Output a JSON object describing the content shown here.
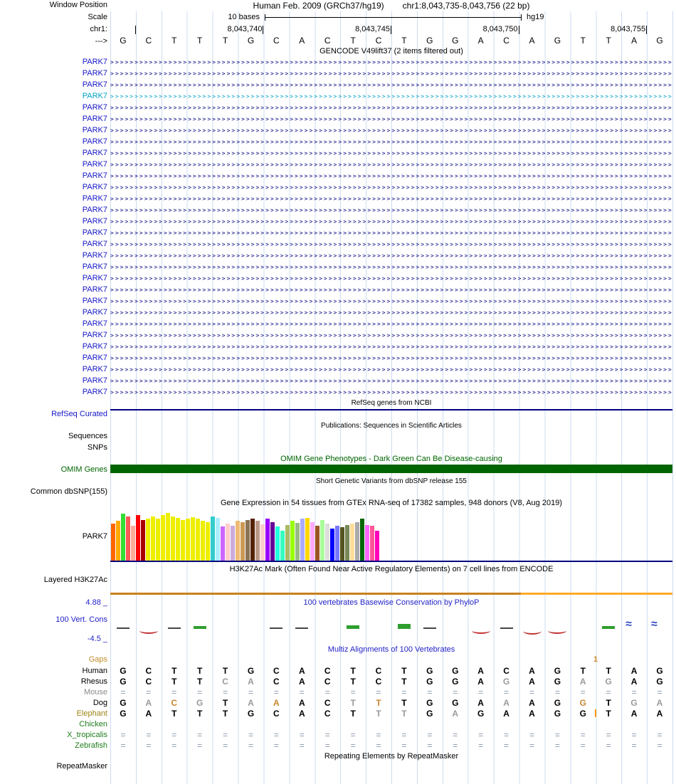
{
  "meta": {
    "title_assembly": "Human Feb. 2009 (GRCh37/hg19)",
    "title_position": "chr1:8,043,735-8,043,756 (22 bp)"
  },
  "gutter": {
    "window_position": "Window Position",
    "scale": "Scale",
    "chrom": "chr1:",
    "direction": "--->"
  },
  "ruler": {
    "scale_text": "10 bases",
    "assembly": "hg19",
    "sequence": "GCTTTGCACTCTGGACAGTTAG",
    "ticks": [
      {
        "label": "",
        "pos": 0
      },
      {
        "label": "8,043,740",
        "pos": 5
      },
      {
        "label": "8,043,745",
        "pos": 10
      },
      {
        "label": "8,043,750",
        "pos": 15
      },
      {
        "label": "8,043,755",
        "pos": 20
      }
    ]
  },
  "colors": {
    "transcript_label": "#1515c8",
    "transcript_highlight": "#00a2c8",
    "transcript_line": "#000080",
    "refseq_bar": "#000080",
    "omim_green": "#006400",
    "gtex_baseline": "#000080",
    "gridline": "#ccdcf0",
    "header_blue": "#2323c8",
    "gaps_orange": "#cc8822",
    "insert_bar": "#ff9800"
  },
  "gencode": {
    "header": "GENCODE V49lift37 (2 items filtered out)",
    "highlight_index": 3,
    "transcripts": [
      "PARK7",
      "PARK7",
      "PARK7",
      "PARK7",
      "PARK7",
      "PARK7",
      "PARK7",
      "PARK7",
      "PARK7",
      "PARK7",
      "PARK7",
      "PARK7",
      "PARK7",
      "PARK7",
      "PARK7",
      "PARK7",
      "PARK7",
      "PARK7",
      "PARK7",
      "PARK7",
      "PARK7",
      "PARK7",
      "PARK7",
      "PARK7",
      "PARK7",
      "PARK7",
      "PARK7",
      "PARK7",
      "PARK7",
      "PARK7"
    ]
  },
  "refseq": {
    "header": "RefSeq genes from NCBI",
    "label": "RefSeq Curated"
  },
  "publications": {
    "header": "Publications: Sequences in Scientific Articles",
    "label": "Sequences"
  },
  "snps": {
    "label": "SNPs"
  },
  "omim": {
    "header": "OMIM Gene Phenotypes - Dark Green Can Be Disease-causing",
    "label": "OMIM Genes"
  },
  "dbsnp": {
    "header": "Short Genetic Variants from dbSNP release 155",
    "label": "Common dbSNP(155)"
  },
  "gtex": {
    "header": "Gene Expression in 54 tissues from GTEx RNA-seq of 17382 samples, 948 donors (V8, Aug 2019)",
    "label": "PARK7",
    "bars": [
      [
        "#FF6600",
        0.74
      ],
      [
        "#FFAA00",
        0.79
      ],
      [
        "#33DD33",
        0.93
      ],
      [
        "#FF5555",
        0.88
      ],
      [
        "#FFAA99",
        0.7
      ],
      [
        "#FF0000",
        0.9
      ],
      [
        "#AA0000",
        0.8
      ],
      [
        "#EEEE00",
        0.84
      ],
      [
        "#EEEE00",
        0.88
      ],
      [
        "#EEEE00",
        0.83
      ],
      [
        "#EEEE00",
        0.9
      ],
      [
        "#EEEE00",
        0.94
      ],
      [
        "#EEEE00",
        0.87
      ],
      [
        "#EEEE00",
        0.85
      ],
      [
        "#EEEE00",
        0.8
      ],
      [
        "#EEEE00",
        0.83
      ],
      [
        "#EEEE00",
        0.86
      ],
      [
        "#EEEE00",
        0.84
      ],
      [
        "#EEEE00",
        0.79
      ],
      [
        "#EEEE00",
        0.76
      ],
      [
        "#33CCCC",
        0.87
      ],
      [
        "#AAEEFF",
        0.85
      ],
      [
        "#CC66FF",
        0.68
      ],
      [
        "#FFCCCC",
        0.73
      ],
      [
        "#CCAADD",
        0.7
      ],
      [
        "#EEBB77",
        0.79
      ],
      [
        "#CC9955",
        0.77
      ],
      [
        "#8B7355",
        0.81
      ],
      [
        "#552200",
        0.84
      ],
      [
        "#BB9988",
        0.79
      ],
      [
        "#FFCCCC",
        0.72
      ],
      [
        "#9900FF",
        0.83
      ],
      [
        "#660099",
        0.77
      ],
      [
        "#22FFDD",
        0.68
      ],
      [
        "#33FFC2",
        0.6
      ],
      [
        "#AABB66",
        0.71
      ],
      [
        "#99FF00",
        0.79
      ],
      [
        "#99BB88",
        0.75
      ],
      [
        "#AAAAFF",
        0.83
      ],
      [
        "#FFD700",
        0.85
      ],
      [
        "#FFAAFF",
        0.77
      ],
      [
        "#995522",
        0.69
      ],
      [
        "#AAFF99",
        0.81
      ],
      [
        "#DDDDDD",
        0.73
      ],
      [
        "#0000FF",
        0.64
      ],
      [
        "#7777FF",
        0.69
      ],
      [
        "#555522",
        0.67
      ],
      [
        "#778855",
        0.71
      ],
      [
        "#FFDD99",
        0.73
      ],
      [
        "#AAAAAA",
        0.77
      ],
      [
        "#006600",
        0.83
      ],
      [
        "#FF66FF",
        0.71
      ],
      [
        "#FF5599",
        0.69
      ],
      [
        "#FF00BB",
        0.6
      ]
    ]
  },
  "h3k27ac": {
    "header": "H3K27Ac Mark (Often Found Near Active Regulatory Elements) on 7 cell lines from ENCODE",
    "label": "Layered H3K27Ac",
    "segments": [
      {
        "from": 0,
        "to": 0.73,
        "color": "#c8811e"
      },
      {
        "from": 0.73,
        "to": 1,
        "color": "#ffaa28"
      }
    ]
  },
  "phylop": {
    "header": "100 vertebrates Basewise Conservation by PhyloP",
    "label": "100 Vert. Cons",
    "max": "4.88 _",
    "min": "-4.5 _",
    "marks": [
      {
        "t": "pos",
        "v": 0.35
      },
      {
        "t": "neg",
        "v": 0.9
      },
      {
        "t": "pos",
        "v": 0.15
      },
      {
        "t": "green",
        "v": 0.5
      },
      {
        "t": "none"
      },
      {
        "t": "none"
      },
      {
        "t": "pos",
        "v": 0.2
      },
      {
        "t": "pos",
        "v": 0.1
      },
      {
        "t": "none"
      },
      {
        "t": "green",
        "v": 0.7
      },
      {
        "t": "none"
      },
      {
        "t": "green",
        "v": 1.0
      },
      {
        "t": "pos",
        "v": 0.15
      },
      {
        "t": "none"
      },
      {
        "t": "neg",
        "v": 1.1
      },
      {
        "t": "pos",
        "v": 0.2
      },
      {
        "t": "neg",
        "v": 1.3
      },
      {
        "t": "neg",
        "v": 0.9
      },
      {
        "t": "none"
      },
      {
        "t": "green",
        "v": 0.6
      },
      {
        "t": "logo"
      },
      {
        "t": "logo"
      }
    ]
  },
  "multiz": {
    "header": "Multiz Alignments of 100 Vertebrates",
    "gaps_label": "Gaps",
    "gap_marker": "1",
    "shade_colors": {
      "k": "#000000",
      "g": "#9a9a9a",
      "t": "#c8862c",
      "e": "#8a98a8"
    },
    "rows": [
      {
        "name": "Human",
        "label_color": "#000000",
        "bases": "GCTTTGCACTCTGGACAGTTAG",
        "shades": "kkkkkkkkkkkkkkkkkkkkkk"
      },
      {
        "name": "Rhesus",
        "label_color": "#000000",
        "bases": "GCTTCACACTCTGGAGAGAGAG",
        "shades": "kkkkggkkkkkkkkkgkkggkk"
      },
      {
        "name": "Mouse",
        "label_color": "#8a8a8a",
        "bases": "======================",
        "shades": "eeeeeeeeeeeeeeeeeeeeee"
      },
      {
        "name": "Dog",
        "label_color": "#000000",
        "bases": "GACGTAAACTTTGGAAAGGTGA",
        "shades": "kgtgkgtkkgtkkkkgkktkgg"
      },
      {
        "name": "Elephant",
        "label_color": "#9c8412",
        "bases": "GATTTGCACTTTGAGAAGGTAA",
        "shades": "kkkkkkkkkkggkgkkkkkkkk",
        "gap_col": 19
      },
      {
        "name": "Chicken",
        "label_color": "#1e7d1e",
        "bases": "",
        "shades": ""
      },
      {
        "name": "X_tropicalis",
        "label_color": "#1e7d1e",
        "bases": "======================",
        "shades": "eeeeeeeeeeeeeeeeeeeeee"
      },
      {
        "name": "Zebrafish",
        "label_color": "#1e7d1e",
        "bases": "======================",
        "shades": "eeeeeeeeeeeeeeeeeeeeee"
      }
    ]
  },
  "repeatmasker": {
    "header": "Repeating Elements by RepeatMasker",
    "label": "RepeatMasker"
  }
}
